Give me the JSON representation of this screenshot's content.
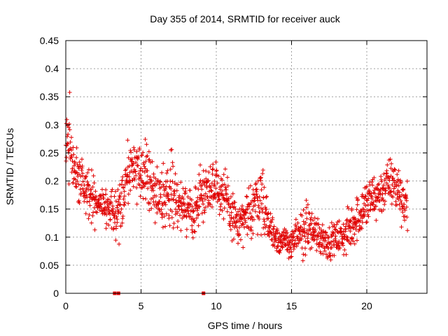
{
  "chart_data": {
    "type": "scatter",
    "title": "Day 355 of 2014, SRMTID for receiver auck",
    "xlabel": "GPS time / hours",
    "ylabel": "SRMTID / TECUs",
    "xlim": [
      0,
      24
    ],
    "ylim": [
      0,
      0.45
    ],
    "xticks": [
      0,
      5,
      10,
      15,
      20
    ],
    "yticks": [
      0,
      0.05,
      0.1,
      0.15,
      0.2,
      0.25,
      0.3,
      0.35,
      0.4,
      0.45
    ],
    "grid": true,
    "marker": "plus",
    "color": "#e00000",
    "series": [
      {
        "name": "SRMTID",
        "note": "approximate centre-line profile of the dense scatter; the drawing script scatters '+' markers around it within the given spread",
        "envelope": {
          "x": [
            0.0,
            0.2,
            0.5,
            1.0,
            1.5,
            2.0,
            2.5,
            3.0,
            3.5,
            4.0,
            4.5,
            5.0,
            5.5,
            6.0,
            6.5,
            7.0,
            7.5,
            8.0,
            8.5,
            9.0,
            9.5,
            10.0,
            10.5,
            11.0,
            11.5,
            12.0,
            12.5,
            13.0,
            13.5,
            14.0,
            14.5,
            15.0,
            15.5,
            16.0,
            16.5,
            17.0,
            17.5,
            18.0,
            18.5,
            19.0,
            19.5,
            20.0,
            20.5,
            21.0,
            21.5,
            22.0,
            22.5
          ],
          "center": [
            0.26,
            0.28,
            0.22,
            0.2,
            0.18,
            0.16,
            0.15,
            0.14,
            0.15,
            0.2,
            0.22,
            0.22,
            0.21,
            0.18,
            0.17,
            0.19,
            0.16,
            0.15,
            0.14,
            0.18,
            0.19,
            0.2,
            0.17,
            0.14,
            0.12,
            0.13,
            0.16,
            0.18,
            0.12,
            0.1,
            0.09,
            0.09,
            0.1,
            0.12,
            0.11,
            0.1,
            0.09,
            0.1,
            0.1,
            0.12,
            0.14,
            0.16,
            0.17,
            0.18,
            0.2,
            0.19,
            0.16
          ],
          "spread": [
            0.08,
            0.12,
            0.08,
            0.08,
            0.07,
            0.06,
            0.05,
            0.05,
            0.07,
            0.09,
            0.08,
            0.08,
            0.08,
            0.07,
            0.07,
            0.09,
            0.06,
            0.06,
            0.06,
            0.07,
            0.06,
            0.07,
            0.07,
            0.06,
            0.05,
            0.06,
            0.08,
            0.09,
            0.05,
            0.04,
            0.04,
            0.04,
            0.05,
            0.07,
            0.05,
            0.05,
            0.04,
            0.04,
            0.05,
            0.06,
            0.06,
            0.07,
            0.06,
            0.06,
            0.06,
            0.07,
            0.06
          ]
        },
        "x_range": [
          0,
          22.7
        ]
      }
    ],
    "zero_points": [
      3.25,
      3.5,
      9.15
    ]
  }
}
